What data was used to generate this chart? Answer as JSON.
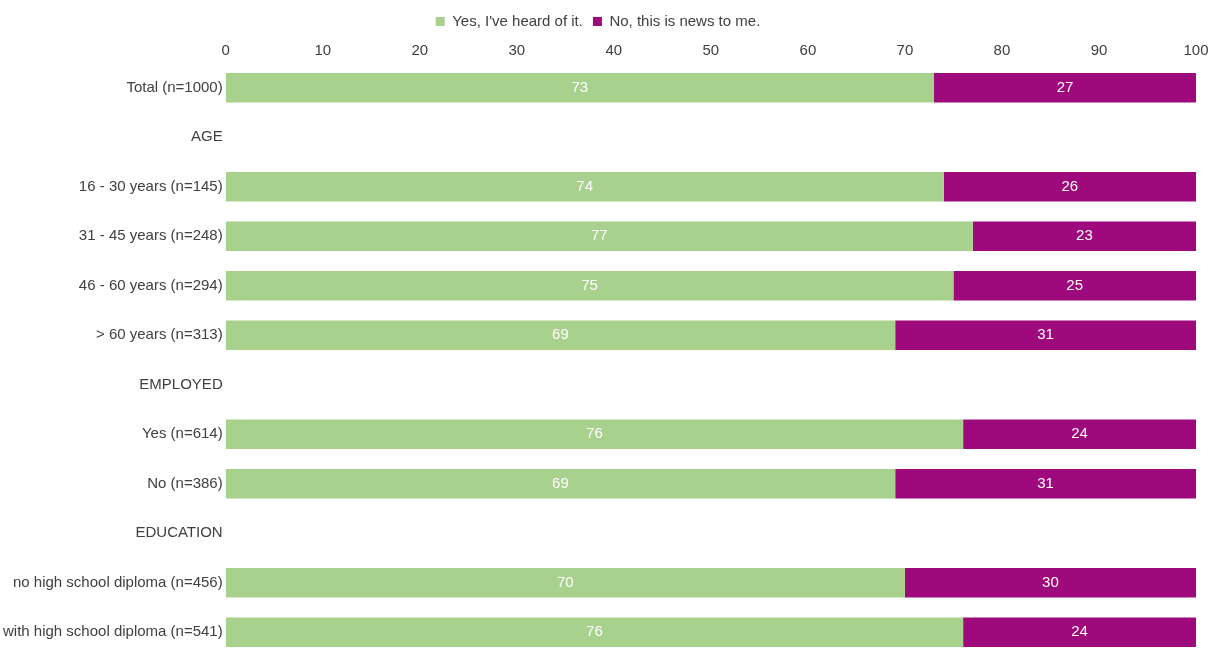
{
  "chart_data": {
    "type": "bar",
    "orientation": "horizontal",
    "stacked": true,
    "categories": [
      "Total (n=1000)",
      "AGE",
      "16 - 30 years (n=145)",
      "31 - 45 years (n=248)",
      "46 - 60 years (n=294)",
      "> 60 years (n=313)",
      "EMPLOYED",
      "Yes (n=614)",
      "No (n=386)",
      "EDUCATION",
      "no high school diploma (n=456)",
      "with high school diploma (n=541)"
    ],
    "series": [
      {
        "name": "Yes, I've heard of it.",
        "color": "#a9d18e",
        "values": [
          73,
          null,
          74,
          77,
          75,
          69,
          null,
          76,
          69,
          null,
          70,
          76
        ]
      },
      {
        "name": "No, this is news to me.",
        "color": "#9e0a7b",
        "values": [
          27,
          null,
          26,
          23,
          25,
          31,
          null,
          24,
          31,
          null,
          30,
          24
        ]
      }
    ],
    "xlim": [
      0,
      100
    ],
    "xticks": [
      0,
      10,
      20,
      30,
      40,
      50,
      60,
      70,
      80,
      90,
      100
    ],
    "data_labels": true,
    "grid": false,
    "legend": "top"
  }
}
